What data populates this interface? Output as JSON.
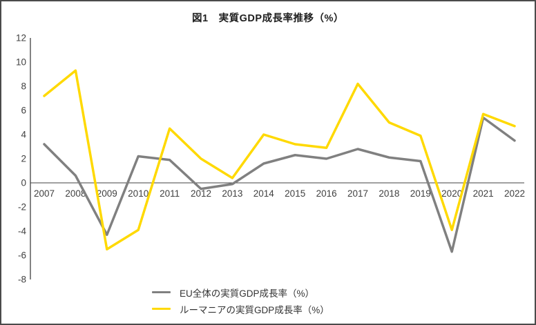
{
  "title": "図1　実質GDP成長率推移（%）",
  "legend": {
    "items": [
      {
        "label": "EU全体の実質GDP成長率（%）",
        "color": "#808080"
      },
      {
        "label": "ルーマニアの実質GDP成長率（%）",
        "color": "#FFD900"
      }
    ]
  },
  "colors": {
    "axis": "#404040",
    "tick_text": "#404040",
    "border": "#4a4a4a",
    "background": "#FFFFFF"
  },
  "chart_data": {
    "type": "line",
    "title": "図1　実質GDP成長率推移（%）",
    "x": [
      2007,
      2008,
      2009,
      2010,
      2011,
      2012,
      2013,
      2014,
      2015,
      2016,
      2017,
      2018,
      2019,
      2020,
      2021,
      2022
    ],
    "series": [
      {
        "name": "EU全体の実質GDP成長率（%）",
        "color": "#808080",
        "values": [
          3.2,
          0.6,
          -4.3,
          2.2,
          1.9,
          -0.5,
          -0.1,
          1.6,
          2.3,
          2.0,
          2.8,
          2.1,
          1.8,
          -5.7,
          5.4,
          3.5
        ]
      },
      {
        "name": "ルーマニアの実質GDP成長率（%）",
        "color": "#FFD900",
        "values": [
          7.2,
          9.3,
          -5.5,
          -3.9,
          4.5,
          2.0,
          0.4,
          4.0,
          3.2,
          2.9,
          8.2,
          5.0,
          3.9,
          -3.9,
          5.7,
          4.7
        ]
      }
    ],
    "xlabel": "",
    "ylabel": "",
    "ylim": [
      -8,
      12
    ],
    "ytick_step": 2,
    "yticks": [
      12,
      10,
      8,
      6,
      4,
      2,
      0,
      -2,
      -4,
      -6,
      -8
    ],
    "grid": false,
    "legend_position": "bottom"
  }
}
